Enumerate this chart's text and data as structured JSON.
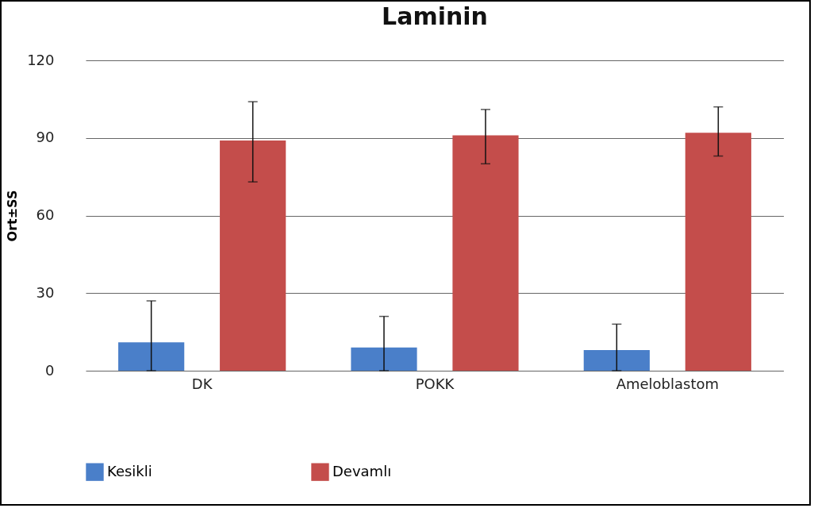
{
  "chart_data": {
    "type": "bar",
    "title": "Laminin",
    "ylabel": "Ort±SS",
    "categories": [
      "DK",
      "POKK",
      "Ameloblastom"
    ],
    "series": [
      {
        "name": "Kesikli",
        "color": "#4a7fc9",
        "values": [
          11,
          9,
          8
        ],
        "errors": [
          [
            0,
            27
          ],
          [
            0,
            21
          ],
          [
            0,
            18
          ]
        ]
      },
      {
        "name": "Devamlı",
        "color": "#c44d4b",
        "values": [
          89,
          91,
          92
        ],
        "errors": [
          [
            73,
            104
          ],
          [
            80,
            101
          ],
          [
            83,
            102
          ]
        ]
      }
    ],
    "ylim": [
      0,
      120
    ],
    "yticks": [
      0,
      30,
      60,
      90,
      120
    ],
    "grid": "y",
    "legend": "bottom"
  }
}
